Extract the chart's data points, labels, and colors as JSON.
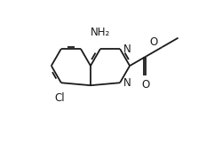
{
  "bg_color": "#ffffff",
  "line_color": "#1a1a1a",
  "line_width": 1.3,
  "font_size": 8.5,
  "figsize": [
    2.5,
    1.78
  ],
  "dpi": 100,
  "labels": {
    "NH2": "NH₂",
    "N": "N",
    "O": "O",
    "Cl": "Cl"
  }
}
